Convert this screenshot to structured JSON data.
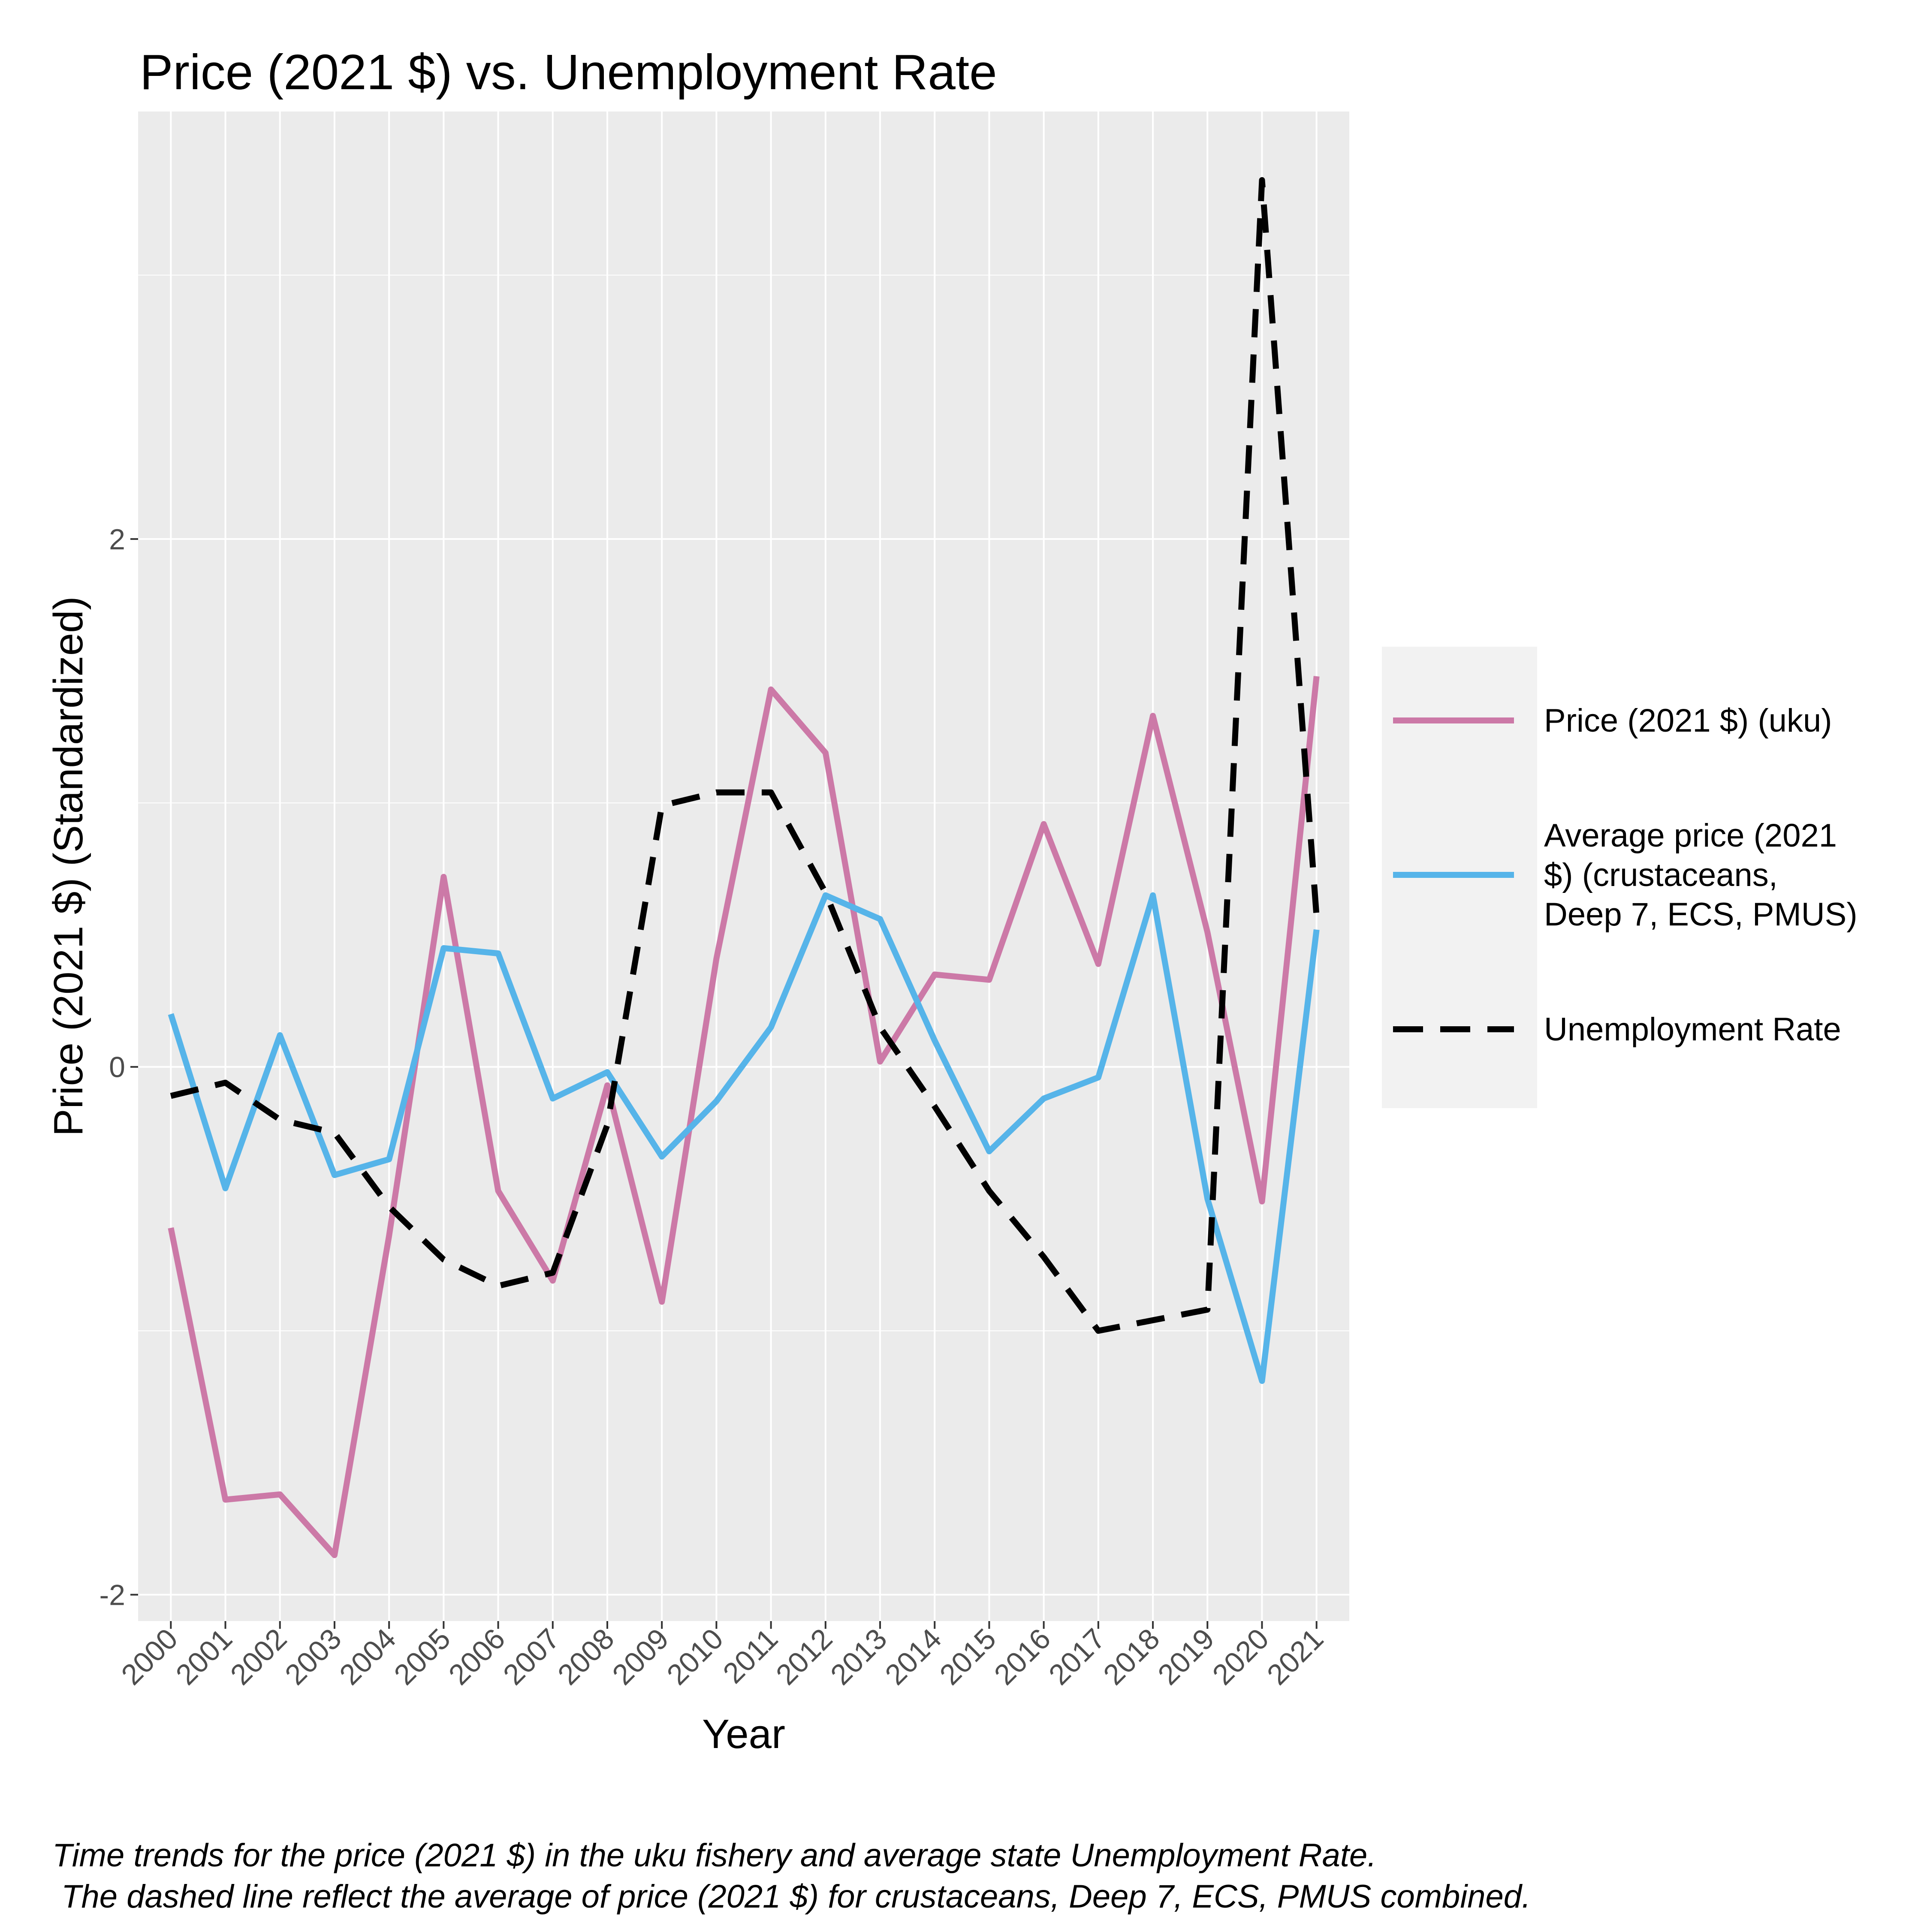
{
  "chart_data": {
    "type": "line",
    "title": "Price (2021 $) vs. Unemployment Rate",
    "xlabel": "Year",
    "ylabel": "Price (2021 $) (Standardized)",
    "x": [
      2000,
      2001,
      2002,
      2003,
      2004,
      2005,
      2006,
      2007,
      2008,
      2009,
      2010,
      2011,
      2012,
      2013,
      2014,
      2015,
      2016,
      2017,
      2018,
      2019,
      2020,
      2021
    ],
    "x_tick_labels": [
      "2000",
      "2001",
      "2002",
      "2003",
      "2004",
      "2005",
      "2006",
      "2007",
      "2008",
      "2009",
      "2010",
      "2011",
      "2012",
      "2013",
      "2014",
      "2015",
      "2016",
      "2017",
      "2018",
      "2019",
      "2020",
      "2021"
    ],
    "ylim": [
      -2.1,
      3.62
    ],
    "y_ticks": [
      -2,
      0,
      2
    ],
    "y_tick_labels": [
      "-2",
      "0",
      "2"
    ],
    "y_minor_gridlines": [
      -1,
      1,
      3
    ],
    "grid": true,
    "legend_position": "right",
    "series": [
      {
        "name": "Price (2021 $) (uku)",
        "color": "#CC79A7",
        "dash": "solid",
        "values": [
          -0.61,
          -1.64,
          -1.62,
          -1.85,
          -0.64,
          0.72,
          -0.47,
          -0.81,
          -0.07,
          -0.89,
          0.41,
          1.43,
          1.19,
          0.02,
          0.35,
          0.33,
          0.92,
          0.39,
          1.33,
          0.51,
          -0.51,
          1.48
        ]
      },
      {
        "name": "Average price (2021 $) (crustaceans, Deep 7, ECS, PMUS)",
        "legend_lines": [
          "Average price (2021",
          "$) (crustaceans,",
          "Deep 7, ECS, PMUS)"
        ],
        "color": "#56B4E9",
        "dash": "solid",
        "values": [
          0.2,
          -0.46,
          0.12,
          -0.41,
          -0.35,
          0.45,
          0.43,
          -0.12,
          -0.02,
          -0.34,
          -0.13,
          0.15,
          0.65,
          0.56,
          0.1,
          -0.32,
          -0.12,
          -0.04,
          0.65,
          -0.5,
          -1.19,
          0.52
        ]
      },
      {
        "name": "Unemployment Rate",
        "color": "#000000",
        "dash": "dashed",
        "values": [
          -0.11,
          -0.06,
          -0.2,
          -0.25,
          -0.53,
          -0.73,
          -0.83,
          -0.78,
          -0.22,
          0.99,
          1.04,
          1.04,
          0.66,
          0.15,
          -0.15,
          -0.47,
          -0.72,
          -1.0,
          -0.96,
          -0.92,
          3.36,
          0.57
        ]
      }
    ]
  },
  "caption": {
    "line1": "Time trends for the price (2021 $) in the uku fishery and average state Unemployment Rate.",
    "line2": " The dashed line reflect the average of price (2021 $) for crustaceans, Deep 7, ECS, PMUS combined."
  }
}
